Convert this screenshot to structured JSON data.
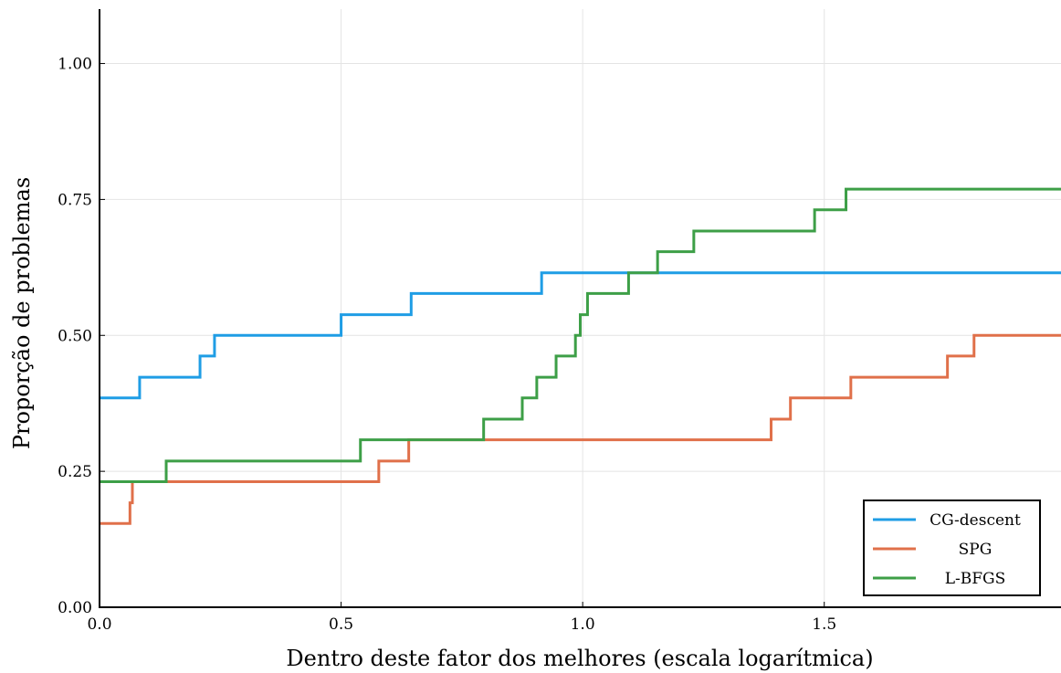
{
  "chart_data": {
    "type": "line",
    "step": "post",
    "title": "",
    "xlabel": "Dentro deste fator dos melhores (escala logarítmica)",
    "ylabel": "Proporção de problemas",
    "xlim": [
      0.0,
      1.99
    ],
    "ylim": [
      0.0,
      1.1
    ],
    "x_ticks": [
      0.0,
      0.5,
      1.0,
      1.5
    ],
    "x_tick_labels": [
      "0.0",
      "0.5",
      "1.0",
      "1.5"
    ],
    "y_ticks": [
      0.0,
      0.25,
      0.5,
      0.75,
      1.0
    ],
    "y_tick_labels": [
      "0.00",
      "0.25",
      "0.50",
      "0.75",
      "1.00"
    ],
    "grid": true,
    "legend_position": "bottom-right",
    "series": [
      {
        "name": "CG-descent",
        "color": "#1f9de5",
        "points": [
          [
            0.0,
            0.385
          ],
          [
            0.083,
            0.423
          ],
          [
            0.208,
            0.462
          ],
          [
            0.238,
            0.5
          ],
          [
            0.5,
            0.538
          ],
          [
            0.645,
            0.577
          ],
          [
            0.915,
            0.615
          ],
          [
            1.99,
            0.615
          ]
        ]
      },
      {
        "name": "SPG",
        "color": "#e0704a",
        "points": [
          [
            0.0,
            0.154
          ],
          [
            0.063,
            0.192
          ],
          [
            0.068,
            0.231
          ],
          [
            0.578,
            0.269
          ],
          [
            0.64,
            0.308
          ],
          [
            1.39,
            0.346
          ],
          [
            1.43,
            0.385
          ],
          [
            1.555,
            0.423
          ],
          [
            1.755,
            0.462
          ],
          [
            1.81,
            0.5
          ],
          [
            1.99,
            0.5
          ]
        ]
      },
      {
        "name": "L-BFGS",
        "color": "#3d9f47",
        "points": [
          [
            0.0,
            0.231
          ],
          [
            0.138,
            0.269
          ],
          [
            0.54,
            0.308
          ],
          [
            0.795,
            0.346
          ],
          [
            0.875,
            0.385
          ],
          [
            0.905,
            0.423
          ],
          [
            0.945,
            0.462
          ],
          [
            0.985,
            0.5
          ],
          [
            0.995,
            0.538
          ],
          [
            1.01,
            0.577
          ],
          [
            1.095,
            0.615
          ],
          [
            1.155,
            0.654
          ],
          [
            1.23,
            0.692
          ],
          [
            1.48,
            0.731
          ],
          [
            1.545,
            0.769
          ],
          [
            1.99,
            0.769
          ]
        ]
      }
    ]
  }
}
